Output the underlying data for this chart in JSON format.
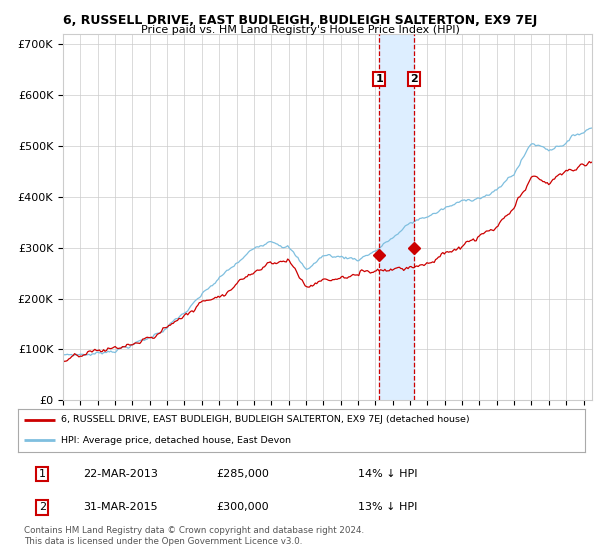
{
  "title": "6, RUSSELL DRIVE, EAST BUDLEIGH, BUDLEIGH SALTERTON, EX9 7EJ",
  "subtitle": "Price paid vs. HM Land Registry's House Price Index (HPI)",
  "ylim": [
    0,
    720000
  ],
  "yticks": [
    0,
    100000,
    200000,
    300000,
    400000,
    500000,
    600000,
    700000
  ],
  "ytick_labels": [
    "£0",
    "£100K",
    "£200K",
    "£300K",
    "£400K",
    "£500K",
    "£600K",
    "£700K"
  ],
  "hpi_color": "#7fbfdf",
  "price_color": "#cc0000",
  "sale1_price": 285000,
  "sale1_year": 2013.22,
  "sale2_price": 300000,
  "sale2_year": 2015.25,
  "legend_line1": "6, RUSSELL DRIVE, EAST BUDLEIGH, BUDLEIGH SALTERTON, EX9 7EJ (detached house)",
  "legend_line2": "HPI: Average price, detached house, East Devon",
  "table_row1": [
    "1",
    "22-MAR-2013",
    "£285,000",
    "14% ↓ HPI"
  ],
  "table_row2": [
    "2",
    "31-MAR-2015",
    "£300,000",
    "13% ↓ HPI"
  ],
  "footer": "Contains HM Land Registry data © Crown copyright and database right 2024.\nThis data is licensed under the Open Government Licence v3.0.",
  "background_color": "#ffffff",
  "grid_color": "#cccccc",
  "shade_color": "#ddeeff"
}
